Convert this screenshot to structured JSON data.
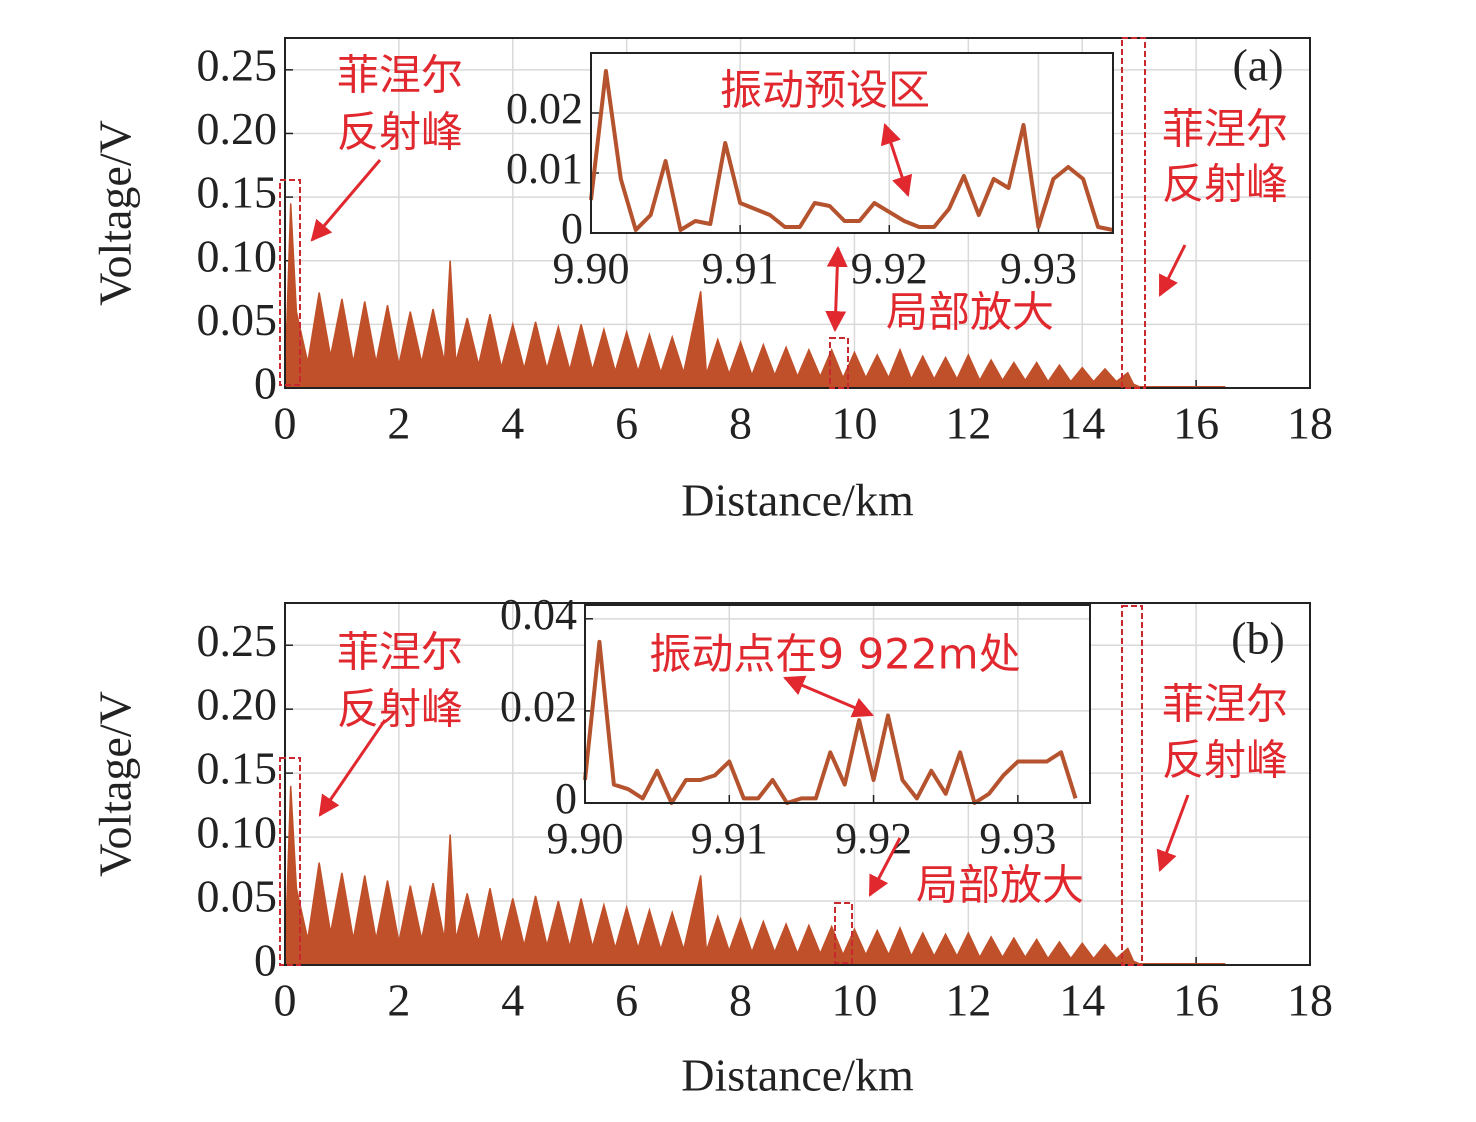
{
  "chart_data": [
    {
      "type": "area",
      "panel_label": "(a)",
      "xlabel": "Distance/km",
      "ylabel": "Voltage/V",
      "color": "#c0502a",
      "annotations": [
        "菲涅尔",
        "反射峰",
        "菲涅尔",
        "反射峰",
        "局部放大"
      ],
      "xlim": [
        0,
        18
      ],
      "ylim": [
        0,
        0.275
      ],
      "grid": true,
      "xticks": [
        0,
        2,
        4,
        6,
        8,
        10,
        12,
        14,
        16,
        18
      ],
      "yticks": [
        0,
        0.05,
        {
          "value": 0.1,
          "label": "0.10"
        },
        0.15,
        {
          "value": 0.2,
          "label": "0.20"
        },
        0.25
      ],
      "x": [
        0,
        0.1,
        0.2,
        0.4,
        0.6,
        0.8,
        1.0,
        1.2,
        1.4,
        1.6,
        1.8,
        2.0,
        2.2,
        2.4,
        2.6,
        2.8,
        2.9,
        3.0,
        3.2,
        3.4,
        3.6,
        3.8,
        4.0,
        4.2,
        4.4,
        4.6,
        4.8,
        5.0,
        5.2,
        5.4,
        5.6,
        5.8,
        6.0,
        6.2,
        6.4,
        6.6,
        6.8,
        7.0,
        7.3,
        7.4,
        7.6,
        7.8,
        8.0,
        8.2,
        8.4,
        8.6,
        8.8,
        9.0,
        9.2,
        9.4,
        9.6,
        9.8,
        10.0,
        10.2,
        10.4,
        10.6,
        10.8,
        11.0,
        11.2,
        11.4,
        11.6,
        11.8,
        12.0,
        12.2,
        12.4,
        12.6,
        12.8,
        13.0,
        13.2,
        13.4,
        13.6,
        13.8,
        14.0,
        14.2,
        14.4,
        14.6,
        14.8,
        14.9,
        15.0,
        16.5
      ],
      "values": [
        0.005,
        0.145,
        0.06,
        0.02,
        0.075,
        0.025,
        0.07,
        0.02,
        0.068,
        0.02,
        0.065,
        0.018,
        0.06,
        0.02,
        0.062,
        0.02,
        0.1,
        0.02,
        0.055,
        0.018,
        0.058,
        0.016,
        0.05,
        0.015,
        0.052,
        0.015,
        0.048,
        0.014,
        0.05,
        0.014,
        0.046,
        0.013,
        0.044,
        0.013,
        0.042,
        0.012,
        0.04,
        0.012,
        0.076,
        0.011,
        0.038,
        0.011,
        0.036,
        0.01,
        0.034,
        0.01,
        0.032,
        0.009,
        0.03,
        0.009,
        0.03,
        0.008,
        0.028,
        0.008,
        0.026,
        0.008,
        0.03,
        0.007,
        0.025,
        0.007,
        0.024,
        0.007,
        0.026,
        0.006,
        0.022,
        0.006,
        0.02,
        0.006,
        0.02,
        0.005,
        0.018,
        0.005,
        0.016,
        0.005,
        0.015,
        0.005,
        0.012,
        0.003,
        0.001,
        0.001
      ]
    },
    {
      "type": "line",
      "annotations": [
        "振动预设区"
      ],
      "xlim": [
        9.9,
        9.935
      ],
      "ylim": [
        0,
        0.03
      ],
      "grid": true,
      "xticks": [
        {
          "value": 9.9,
          "label": "9.90"
        },
        9.91,
        9.92,
        9.93
      ],
      "yticks": [
        0,
        0.01,
        0.02
      ],
      "x": [
        9.9,
        9.901,
        9.902,
        9.903,
        9.904,
        9.905,
        9.906,
        9.907,
        9.908,
        9.909,
        9.91,
        9.911,
        9.912,
        9.913,
        9.914,
        9.915,
        9.916,
        9.917,
        9.918,
        9.919,
        9.92,
        9.921,
        9.922,
        9.923,
        9.924,
        9.925,
        9.926,
        9.927,
        9.928,
        9.929,
        9.93,
        9.931,
        9.932,
        9.933,
        9.934,
        9.935
      ],
      "series": [
        {
          "color": "#b5532e",
          "values": [
            0.0055,
            0.027,
            0.009,
            0.0005,
            0.003,
            0.012,
            0.0005,
            0.002,
            0.0015,
            0.015,
            0.005,
            0.004,
            0.003,
            0.001,
            0.001,
            0.005,
            0.0045,
            0.002,
            0.002,
            0.005,
            0.0035,
            0.002,
            0.001,
            0.001,
            0.004,
            0.0095,
            0.003,
            0.009,
            0.0075,
            0.018,
            0.001,
            0.009,
            0.011,
            0.009,
            0.001,
            0.0005
          ]
        }
      ]
    },
    {
      "type": "area",
      "panel_label": "(b)",
      "xlabel": "Distance/km",
      "ylabel": "Voltage/V",
      "color": "#c0502a",
      "annotations": [
        "菲涅尔",
        "反射峰",
        "菲涅尔",
        "反射峰",
        "局部放大"
      ],
      "xlim": [
        0,
        18
      ],
      "ylim": [
        0,
        0.283
      ],
      "grid": true,
      "xticks": [
        0,
        2,
        4,
        6,
        8,
        10,
        12,
        14,
        16,
        18
      ],
      "yticks": [
        0,
        0.05,
        {
          "value": 0.1,
          "label": "0.10"
        },
        0.15,
        {
          "value": 0.2,
          "label": "0.20"
        },
        0.25
      ],
      "x": [
        0,
        0.1,
        0.2,
        0.4,
        0.6,
        0.8,
        1.0,
        1.2,
        1.4,
        1.6,
        1.8,
        2.0,
        2.2,
        2.4,
        2.6,
        2.8,
        2.9,
        3.0,
        3.2,
        3.4,
        3.6,
        3.8,
        4.0,
        4.2,
        4.4,
        4.6,
        4.8,
        5.0,
        5.2,
        5.4,
        5.6,
        5.8,
        6.0,
        6.2,
        6.4,
        6.6,
        6.8,
        7.0,
        7.3,
        7.4,
        7.6,
        7.8,
        8.0,
        8.2,
        8.4,
        8.6,
        8.8,
        9.0,
        9.2,
        9.4,
        9.6,
        9.8,
        10.0,
        10.2,
        10.4,
        10.6,
        10.8,
        11.0,
        11.2,
        11.4,
        11.6,
        11.8,
        12.0,
        12.2,
        12.4,
        12.6,
        12.8,
        13.0,
        13.2,
        13.4,
        13.6,
        13.8,
        14.0,
        14.2,
        14.4,
        14.6,
        14.8,
        14.9,
        15.0,
        16.5
      ],
      "values": [
        0.005,
        0.14,
        0.06,
        0.02,
        0.08,
        0.025,
        0.072,
        0.02,
        0.07,
        0.02,
        0.066,
        0.018,
        0.062,
        0.02,
        0.064,
        0.02,
        0.102,
        0.02,
        0.056,
        0.018,
        0.06,
        0.016,
        0.052,
        0.015,
        0.054,
        0.015,
        0.05,
        0.014,
        0.052,
        0.014,
        0.047,
        0.013,
        0.045,
        0.013,
        0.043,
        0.012,
        0.041,
        0.012,
        0.07,
        0.011,
        0.038,
        0.011,
        0.036,
        0.01,
        0.034,
        0.01,
        0.032,
        0.009,
        0.031,
        0.009,
        0.03,
        0.008,
        0.028,
        0.008,
        0.027,
        0.008,
        0.029,
        0.007,
        0.025,
        0.007,
        0.024,
        0.007,
        0.025,
        0.006,
        0.022,
        0.006,
        0.021,
        0.006,
        0.02,
        0.005,
        0.018,
        0.005,
        0.017,
        0.005,
        0.016,
        0.005,
        0.013,
        0.003,
        0.001,
        0.001
      ]
    },
    {
      "type": "line",
      "annotations": [
        "振动点在9 922m处"
      ],
      "xlim": [
        9.9,
        9.935
      ],
      "ylim": [
        0,
        0.043
      ],
      "grid": true,
      "xticks": [
        {
          "value": 9.9,
          "label": "9.90"
        },
        9.91,
        9.92,
        9.93
      ],
      "yticks": [
        0,
        0.02,
        0.04
      ],
      "x": [
        9.9,
        9.901,
        9.902,
        9.903,
        9.904,
        9.905,
        9.906,
        9.907,
        9.908,
        9.909,
        9.91,
        9.911,
        9.912,
        9.913,
        9.914,
        9.915,
        9.916,
        9.917,
        9.918,
        9.919,
        9.92,
        9.921,
        9.922,
        9.923,
        9.924,
        9.925,
        9.926,
        9.927,
        9.928,
        9.929,
        9.93,
        9.931,
        9.932,
        9.933,
        9.934
      ],
      "series": [
        {
          "color": "#b5532e",
          "values": [
            0.005,
            0.035,
            0.004,
            0.003,
            0.001,
            0.007,
            0,
            0.005,
            0.005,
            0.006,
            0.009,
            0.001,
            0.001,
            0.005,
            0,
            0.001,
            0.001,
            0.011,
            0.004,
            0.018,
            0.005,
            0.019,
            0.005,
            0.001,
            0.007,
            0.002,
            0.011,
            0,
            0.002,
            0.006,
            0.009,
            0.009,
            0.009,
            0.011,
            0.001
          ]
        }
      ]
    }
  ]
}
